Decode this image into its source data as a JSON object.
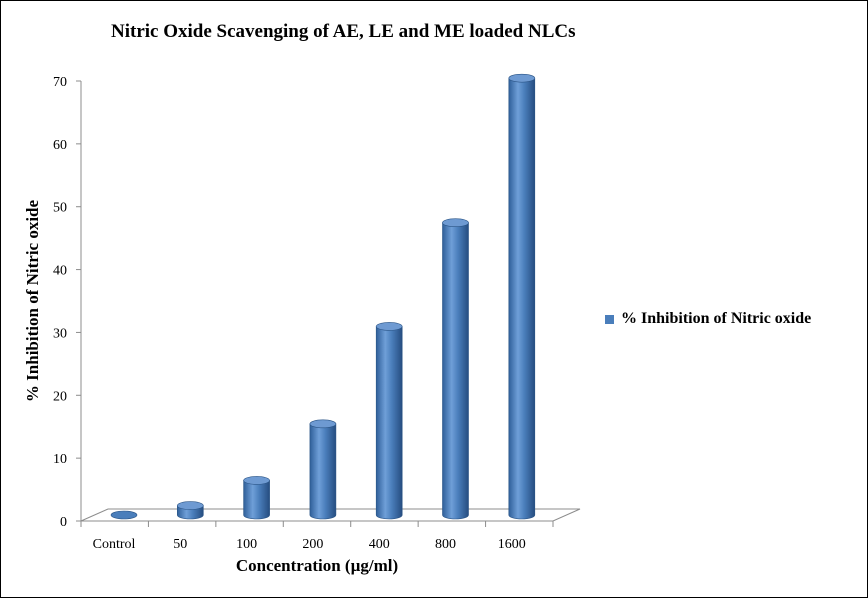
{
  "chart_data": {
    "type": "bar",
    "title": "Nitric Oxide Scavenging of AE, LE and ME loaded NLCs",
    "xlabel": "Concentration (µg/ml)",
    "ylabel": "% Inhibition of Nitric oxide",
    "categories": [
      "Control",
      "50",
      "100",
      "200",
      "400",
      "800",
      "1600"
    ],
    "series": [
      {
        "name": "% Inhibition of Nitric oxide",
        "values": [
          0,
          1.5,
          5.5,
          14.5,
          30,
          46.5,
          69.5
        ],
        "color": "#4A7EBB"
      }
    ],
    "ylim": [
      0,
      70
    ],
    "yticks": [
      "0",
      "10",
      "20",
      "30",
      "40",
      "50",
      "60",
      "70"
    ],
    "grid": false,
    "legend_position": "right",
    "style": "3d-cylinder"
  }
}
